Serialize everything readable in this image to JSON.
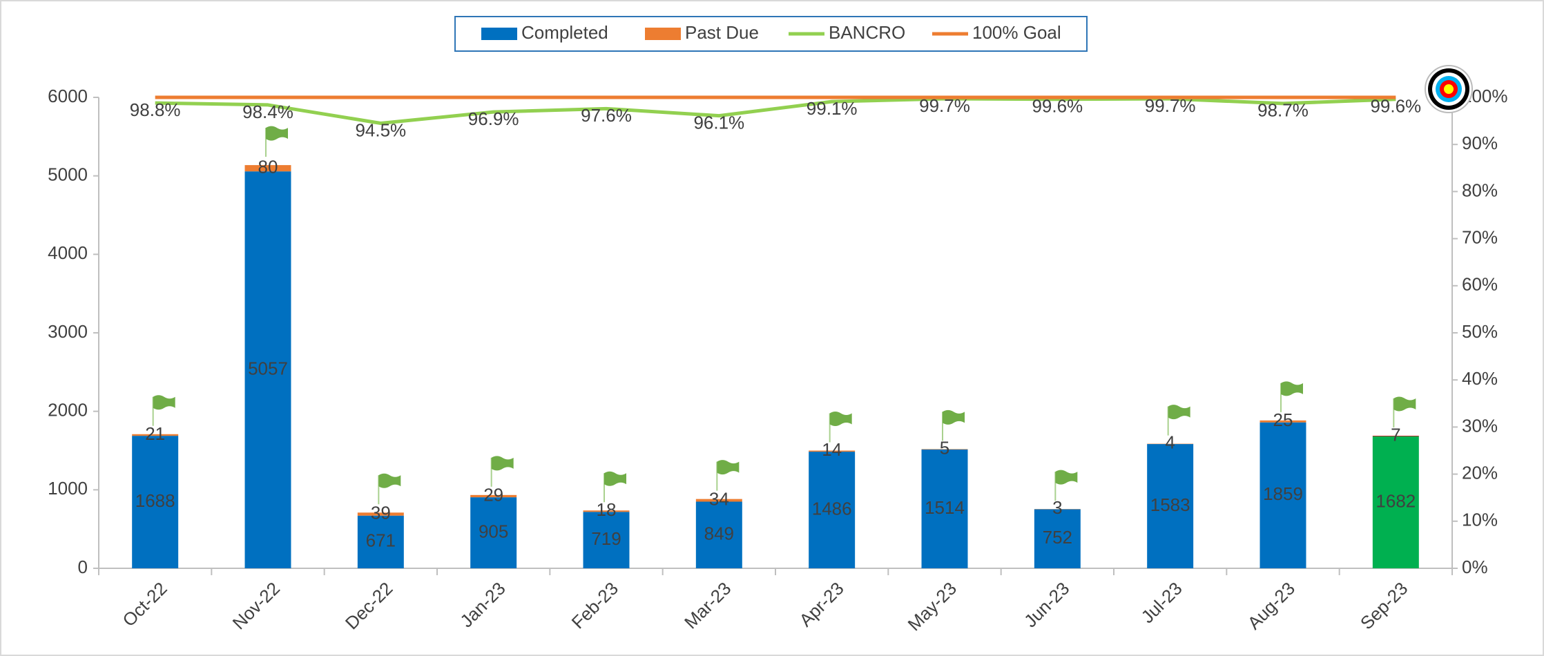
{
  "chart_data": {
    "type": "bar",
    "stacked": true,
    "categories": [
      "Oct-22",
      "Nov-22",
      "Dec-22",
      "Jan-23",
      "Feb-23",
      "Mar-23",
      "Apr-23",
      "May-23",
      "Jun-23",
      "Jul-23",
      "Aug-23",
      "Sep-23"
    ],
    "series": [
      {
        "name": "Completed",
        "type": "bar",
        "color": "#0070c0",
        "point_colors": [
          "#0070c0",
          "#0070c0",
          "#0070c0",
          "#0070c0",
          "#0070c0",
          "#0070c0",
          "#0070c0",
          "#0070c0",
          "#0070c0",
          "#0070c0",
          "#0070c0",
          "#00b050"
        ],
        "values": [
          1688,
          5057,
          671,
          905,
          719,
          849,
          1486,
          1514,
          752,
          1583,
          1859,
          1682
        ]
      },
      {
        "name": "Past Due",
        "type": "bar",
        "color": "#ed7d31",
        "point_colors": [
          "#ed7d31",
          "#ed7d31",
          "#ed7d31",
          "#ed7d31",
          "#ed7d31",
          "#ed7d31",
          "#ed7d31",
          "#ed7d31",
          "#ed7d31",
          "#ed7d31",
          "#ed7d31",
          "#c00000"
        ],
        "values": [
          21,
          80,
          39,
          29,
          18,
          34,
          14,
          5,
          3,
          4,
          25,
          7
        ]
      },
      {
        "name": "BANCRO",
        "type": "line",
        "axis": "y2",
        "color": "#92d050",
        "values": [
          98.8,
          98.4,
          94.5,
          96.9,
          97.6,
          96.1,
          99.1,
          99.7,
          99.6,
          99.7,
          98.7,
          99.6
        ],
        "value_labels": [
          "98.8%",
          "98.4%",
          "94.5%",
          "96.9%",
          "97.6%",
          "96.1%",
          "99.1%",
          "99.7%",
          "99.6%",
          "99.7%",
          "98.7%",
          "99.6%"
        ]
      },
      {
        "name": "100% Goal",
        "type": "line",
        "axis": "y2",
        "color": "#ed7d31",
        "values": [
          100,
          100,
          100,
          100,
          100,
          100,
          100,
          100,
          100,
          100,
          100,
          100
        ]
      }
    ],
    "ylim": [
      0,
      6000
    ],
    "yticks": [
      0,
      1000,
      2000,
      3000,
      4000,
      5000,
      6000
    ],
    "y2lim": [
      0,
      100
    ],
    "y2ticks": [
      {
        "value": 0,
        "label": "0%"
      },
      {
        "value": 10,
        "label": "10%"
      },
      {
        "value": 20,
        "label": "20%"
      },
      {
        "value": 30,
        "label": "30%"
      },
      {
        "value": 40,
        "label": "40%"
      },
      {
        "value": 50,
        "label": "50%"
      },
      {
        "value": 60,
        "label": "60%"
      },
      {
        "value": 70,
        "label": "70%"
      },
      {
        "value": 80,
        "label": "80%"
      },
      {
        "value": 90,
        "label": "90%"
      },
      {
        "value": 100,
        "label": "100%"
      }
    ],
    "grid": false,
    "legend": "top"
  }
}
